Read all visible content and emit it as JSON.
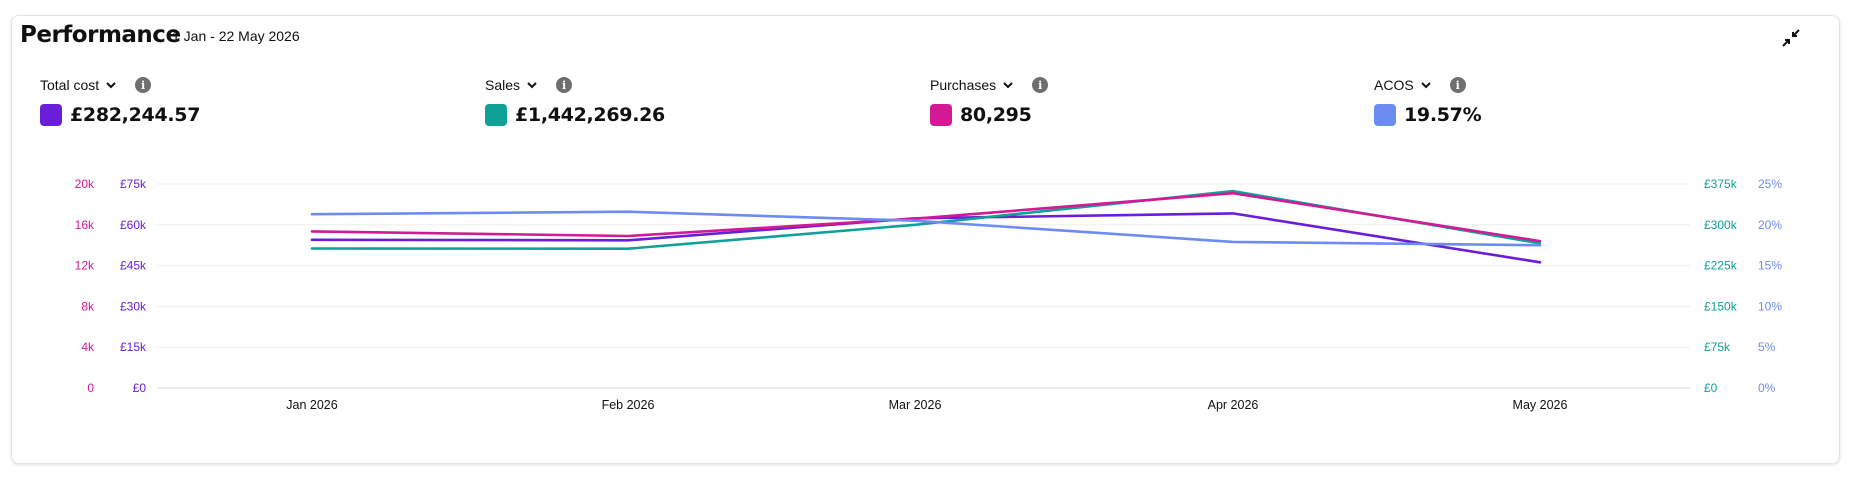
{
  "header": {
    "title": "Performance",
    "date_range": "1 Jan - 22 May 2026"
  },
  "metrics": [
    {
      "label": "Total cost",
      "value": "£282,244.57",
      "color": "#6a1ed8"
    },
    {
      "label": "Sales",
      "value": "£1,442,269.26",
      "color": "#0fa198"
    },
    {
      "label": "Purchases",
      "value": "80,295",
      "color": "#d21a96"
    },
    {
      "label": "ACOS",
      "value": "19.57%",
      "color": "#6d8cf2"
    }
  ],
  "icons": {
    "collapse": "collapse-arrows-icon",
    "chevron": "chevron-down-icon",
    "info": "info-icon"
  },
  "chart_data": {
    "type": "line",
    "x": [
      "Jan 2026",
      "Feb 2026",
      "Mar 2026",
      "Apr 2026",
      "May 2026"
    ],
    "axes": {
      "left_outer": {
        "ticks": [
          "0",
          "4k",
          "8k",
          "12k",
          "16k",
          "20k"
        ],
        "range": [
          0,
          20000
        ],
        "color": "#d21a96"
      },
      "left_inner": {
        "ticks": [
          "£0",
          "£15k",
          "£30k",
          "£45k",
          "£60k",
          "£75k"
        ],
        "range": [
          0,
          75000
        ],
        "color": "#6a1ed8"
      },
      "right_inner": {
        "ticks": [
          "£0",
          "£75k",
          "£150k",
          "£225k",
          "£300k",
          "£375k"
        ],
        "range": [
          0,
          375000
        ],
        "color": "#0fa198"
      },
      "right_outer": {
        "ticks": [
          "0%",
          "5%",
          "10%",
          "15%",
          "20%",
          "25%"
        ],
        "range": [
          0,
          25
        ],
        "color": "#6d8cf2"
      }
    },
    "series": [
      {
        "name": "Total cost",
        "axis": "left_inner",
        "color": "#6a1ed8",
        "values": [
          54500,
          54300,
          62400,
          64200,
          46200
        ]
      },
      {
        "name": "Sales",
        "axis": "right_inner",
        "color": "#0fa198",
        "values": [
          256500,
          256000,
          300000,
          362000,
          266000
        ]
      },
      {
        "name": "Purchases",
        "axis": "left_outer",
        "color": "#d21a96",
        "values": [
          15350,
          14900,
          16600,
          19100,
          14400
        ]
      },
      {
        "name": "ACOS",
        "axis": "right_outer",
        "color": "#6d8cf2",
        "values": [
          21.3,
          21.6,
          20.5,
          17.9,
          17.5
        ]
      }
    ],
    "grid": true,
    "legend": "top"
  }
}
